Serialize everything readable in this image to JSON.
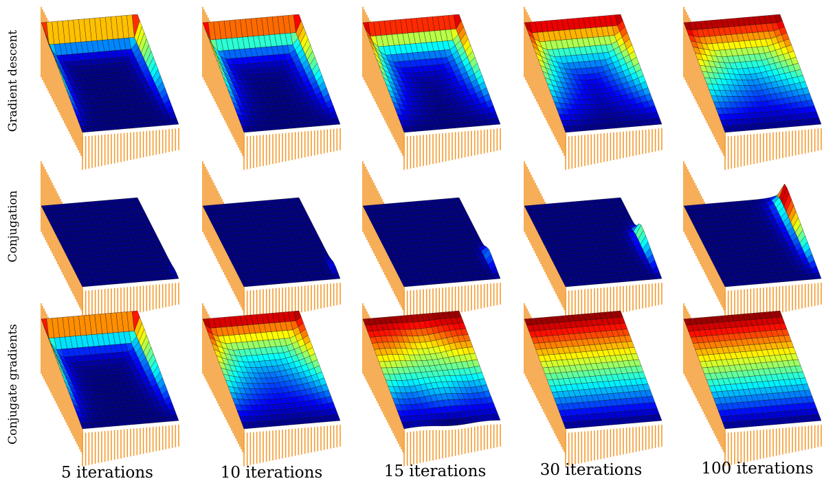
{
  "row_labels": [
    "Gradient descent",
    "Conjugation",
    "Conjugate gradients"
  ],
  "column_labels": [
    "5 iterations",
    "10 iterations",
    "15 iterations",
    "30 iterations",
    "100 iterations"
  ]
}
